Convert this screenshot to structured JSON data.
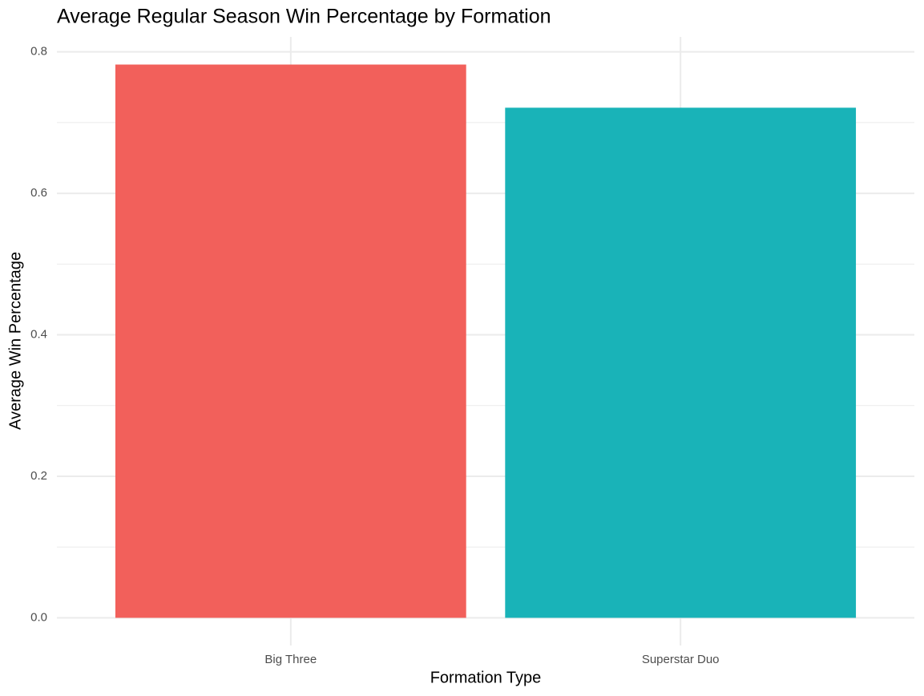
{
  "chart_data": {
    "type": "bar",
    "title": "Average Regular Season Win Percentage by Formation",
    "x_label": "Formation Type",
    "y_label": "Average Win Percentage",
    "categories": [
      "Big Three",
      "Superstar Duo"
    ],
    "values": [
      0.782,
      0.721
    ],
    "colors": [
      "#F2605B",
      "#19B3B8"
    ],
    "ylim": [
      -0.0391,
      0.8211
    ],
    "yticks": [
      {
        "value": 0,
        "label": "0.0"
      },
      0.2,
      0.4,
      0.6,
      0.8
    ],
    "minor_yticks": [
      0.1,
      0.3,
      0.5,
      0.7
    ],
    "grid": true
  }
}
